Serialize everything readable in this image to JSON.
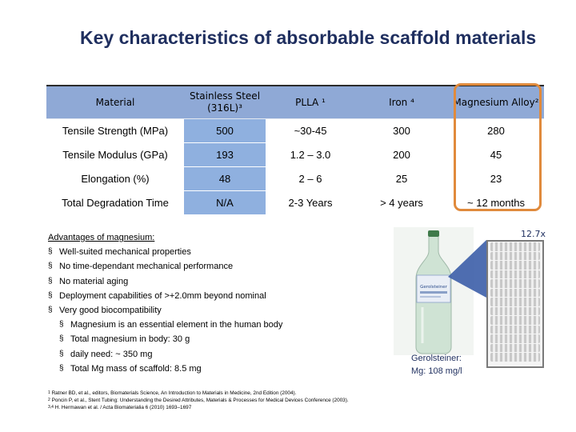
{
  "title": "Key characteristics of absorbable scaffold materials",
  "table": {
    "headers": [
      "Material",
      "Stainless Steel (316L)³",
      "PLLA ¹",
      "Iron ⁴",
      "Magnesium Alloy²"
    ],
    "rows": [
      [
        "Tensile Strength (MPa)",
        "500",
        "~30-45",
        "300",
        "280"
      ],
      [
        "Tensile Modulus (GPa)",
        "193",
        "1.2 – 3.0",
        "200",
        "45"
      ],
      [
        "Elongation (%)",
        "48",
        "2 – 6",
        "25",
        "23"
      ],
      [
        "Total Degradation Time",
        "N/A",
        "2-3 Years",
        "> 4 years",
        "~ 12 months"
      ]
    ]
  },
  "advantages": {
    "heading": "Advantages of magnesium:",
    "items": [
      "Well-suited mechanical properties",
      "No time-dependant mechanical performance",
      "No material aging",
      "Deployment capabilities of >+2.0mm beyond nominal",
      "Very good biocompatibility"
    ],
    "subitems": [
      "Magnesium is an essential element in the human body",
      "Total magnesium in body: 30 g",
      "daily need: ~ 350 mg",
      "Total Mg mass of scaffold: 8.5 mg"
    ]
  },
  "references": [
    {
      "num": "1",
      "text": "Ratner BD, et al., editors, Biomaterials Science, An Introduction to Materials in Medicine, 2nd Edition (2004)."
    },
    {
      "num": "2",
      "text": "Poncin P, et al., Stent Tubing: Understanding the Desired Attributes, Materials & Processes for Medical Devices Conference (2003)."
    },
    {
      "num": "3,4",
      "text": "H. Hermawan et al. / Acta Biomaterialia 6 (2010) 1693–1697"
    }
  ],
  "bottle": {
    "brand_text": "Gerolsteiner",
    "label_line1": "Gerolsteiner:",
    "label_line2": "Mg: 108 mg/l"
  },
  "callout": {
    "label": "12.7x"
  },
  "colors": {
    "title": "#1f2f5f",
    "header_bg": "#8fa9d6",
    "highlight_col": "#8fb0df",
    "mg_box_border": "#e08a3c"
  }
}
